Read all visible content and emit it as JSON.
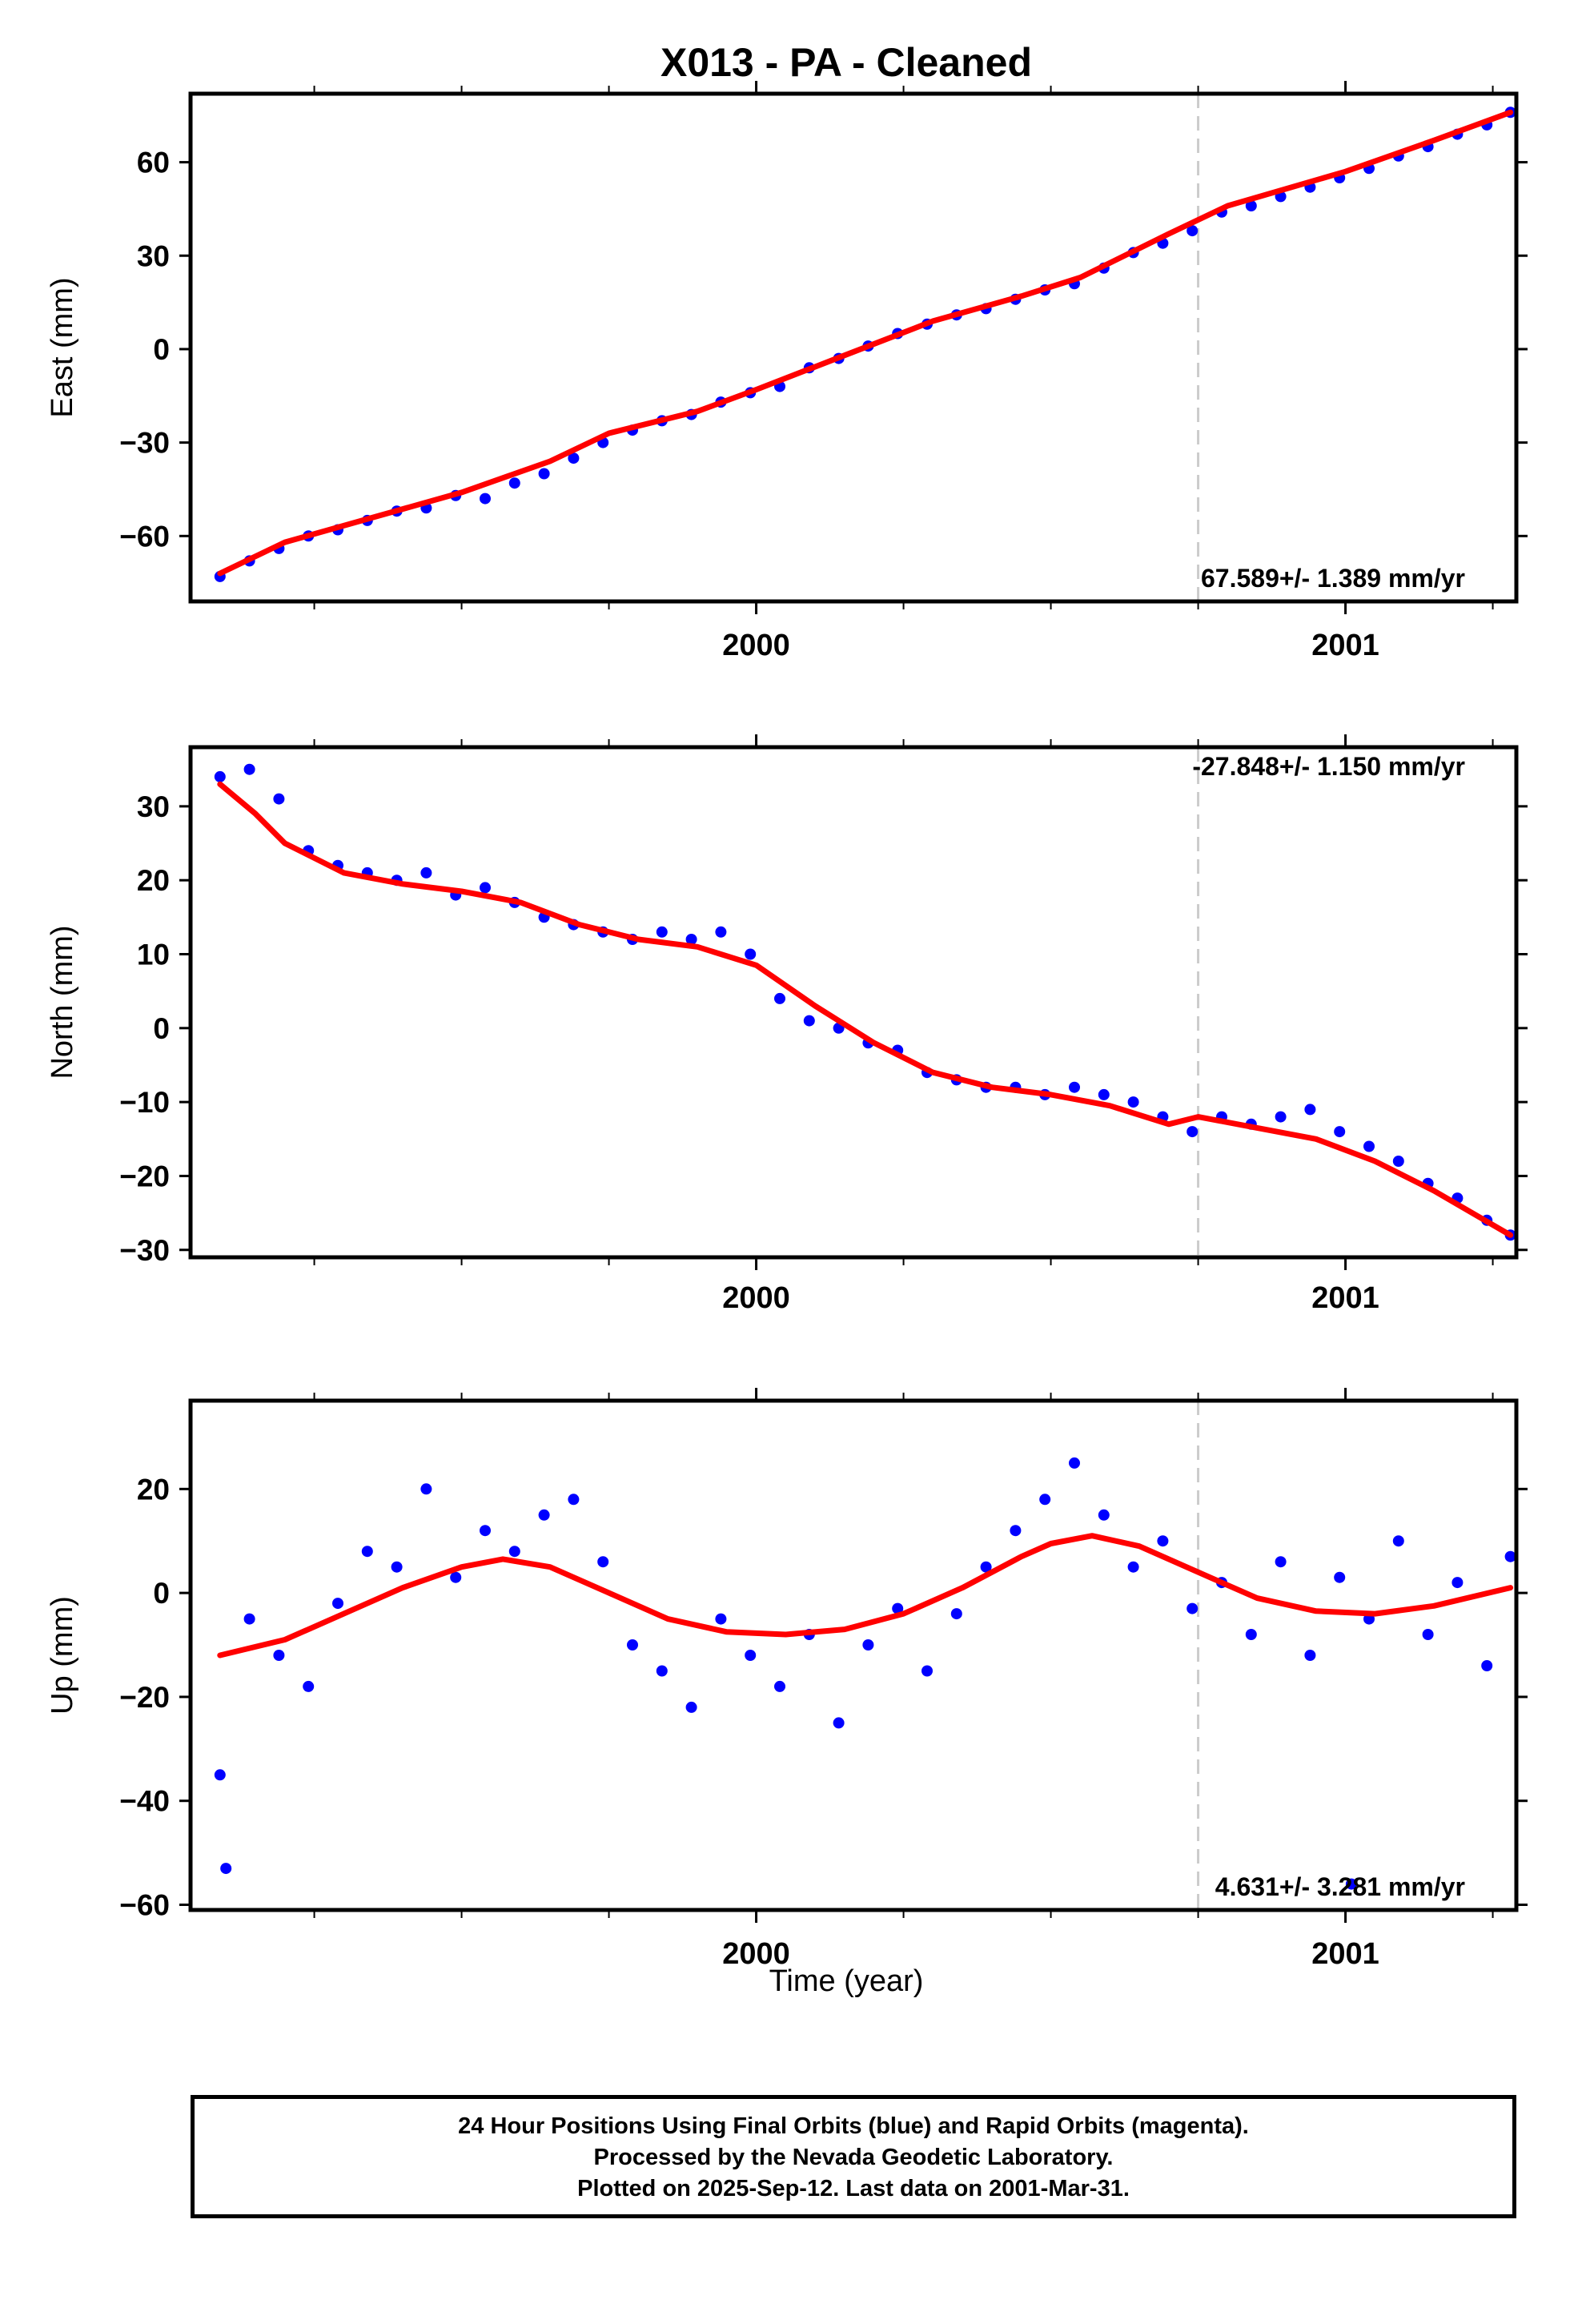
{
  "title": "X013  - PA - Cleaned",
  "xlabel": "Time (year)",
  "footer": {
    "line1": "24 Hour Positions Using Final Orbits (blue) and Rapid Orbits (magenta).",
    "line2": "Processed by the Nevada Geodetic Laboratory.",
    "line3": "Plotted on 2025-Sep-12. Last data on 2001-Mar-31."
  },
  "colors": {
    "points": "#0000ff",
    "model": "#ff0000",
    "marker": "#cccccc",
    "axis": "#000000"
  },
  "chart_data": [
    {
      "type": "scatter",
      "panel": "east",
      "ylabel": "East (mm)",
      "rate_label": "67.589+/- 1.389 mm/yr",
      "xlim": [
        1999.04,
        2001.29
      ],
      "ylim": [
        -81,
        82
      ],
      "yticks": [
        -60,
        -30,
        0,
        30,
        60
      ],
      "xtick_labels": [
        "2000",
        "2001"
      ],
      "xticks_major": [
        2000,
        2001
      ],
      "xticks_minor": [
        1999.25,
        1999.5,
        1999.75,
        2000.25,
        2000.5,
        2000.75,
        2001.25
      ],
      "vertical_marker": 2000.75,
      "model": {
        "x": [
          1999.09,
          1999.2,
          1999.35,
          1999.5,
          1999.65,
          1999.75,
          1999.9,
          2000.0,
          2000.15,
          2000.3,
          2000.45,
          2000.55,
          2000.7,
          2000.8,
          2001.0,
          2001.15,
          2001.28
        ],
        "y": [
          -72,
          -62,
          -54,
          -46,
          -36,
          -27,
          -20,
          -13,
          -2,
          9,
          17,
          23,
          37,
          46,
          57,
          67,
          76
        ]
      },
      "points": {
        "x": [
          1999.09,
          1999.14,
          1999.19,
          1999.24,
          1999.29,
          1999.34,
          1999.39,
          1999.44,
          1999.49,
          1999.54,
          1999.59,
          1999.64,
          1999.69,
          1999.74,
          1999.79,
          1999.84,
          1999.89,
          1999.94,
          1999.99,
          2000.04,
          2000.09,
          2000.14,
          2000.19,
          2000.24,
          2000.29,
          2000.34,
          2000.39,
          2000.44,
          2000.49,
          2000.54,
          2000.59,
          2000.64,
          2000.69,
          2000.74,
          2000.79,
          2000.84,
          2000.89,
          2000.94,
          2000.99,
          2001.04,
          2001.09,
          2001.14,
          2001.19,
          2001.24,
          2001.28
        ],
        "y": [
          -73,
          -68,
          -64,
          -60,
          -58,
          -55,
          -52,
          -51,
          -47,
          -48,
          -43,
          -40,
          -35,
          -30,
          -26,
          -23,
          -21,
          -17,
          -14,
          -12,
          -6,
          -3,
          1,
          5,
          8,
          11,
          13,
          16,
          19,
          21,
          26,
          31,
          34,
          38,
          44,
          46,
          49,
          52,
          55,
          58,
          62,
          65,
          69,
          72,
          76
        ]
      }
    },
    {
      "type": "scatter",
      "panel": "north",
      "ylabel": "North (mm)",
      "rate_label": "-27.848+/- 1.150 mm/yr",
      "xlim": [
        1999.04,
        2001.29
      ],
      "ylim": [
        -31,
        38
      ],
      "yticks": [
        -30,
        -20,
        -10,
        0,
        10,
        20,
        30
      ],
      "xtick_labels": [
        "2000",
        "2001"
      ],
      "xticks_major": [
        2000,
        2001
      ],
      "xticks_minor": [
        1999.25,
        1999.5,
        1999.75,
        2000.25,
        2000.5,
        2000.75,
        2001.25
      ],
      "vertical_marker": 2000.75,
      "model": {
        "x": [
          1999.09,
          1999.15,
          1999.2,
          1999.3,
          1999.4,
          1999.5,
          1999.6,
          1999.7,
          1999.8,
          1999.9,
          2000.0,
          2000.1,
          2000.2,
          2000.3,
          2000.4,
          2000.5,
          2000.6,
          2000.7,
          2000.75,
          2000.85,
          2000.95,
          2001.05,
          2001.15,
          2001.28
        ],
        "y": [
          33,
          29,
          25,
          21,
          19.5,
          18.5,
          17,
          14,
          12,
          11,
          8.5,
          3,
          -2,
          -6,
          -8,
          -9,
          -10.5,
          -13,
          -12,
          -13.5,
          -15,
          -18,
          -22,
          -28
        ]
      },
      "points": {
        "x": [
          1999.09,
          1999.14,
          1999.19,
          1999.24,
          1999.29,
          1999.34,
          1999.39,
          1999.44,
          1999.49,
          1999.54,
          1999.59,
          1999.64,
          1999.69,
          1999.74,
          1999.79,
          1999.84,
          1999.89,
          1999.94,
          1999.99,
          2000.04,
          2000.09,
          2000.14,
          2000.19,
          2000.24,
          2000.29,
          2000.34,
          2000.39,
          2000.44,
          2000.49,
          2000.54,
          2000.59,
          2000.64,
          2000.69,
          2000.74,
          2000.79,
          2000.84,
          2000.89,
          2000.94,
          2000.99,
          2001.04,
          2001.09,
          2001.14,
          2001.19,
          2001.24,
          2001.28
        ],
        "y": [
          34,
          35,
          31,
          24,
          22,
          21,
          20,
          21,
          18,
          19,
          17,
          15,
          14,
          13,
          12,
          13,
          12,
          13,
          10,
          4,
          1,
          0,
          -2,
          -3,
          -6,
          -7,
          -8,
          -8,
          -9,
          -8,
          -9,
          -10,
          -12,
          -14,
          -12,
          -13,
          -12,
          -11,
          -14,
          -16,
          -18,
          -21,
          -23,
          -26,
          -28
        ]
      }
    },
    {
      "type": "scatter",
      "panel": "up",
      "ylabel": "Up (mm)",
      "rate_label": "4.631+/- 3.281 mm/yr",
      "xlim": [
        1999.04,
        2001.29
      ],
      "ylim": [
        -61,
        37
      ],
      "yticks": [
        -60,
        -40,
        -20,
        0,
        20
      ],
      "xtick_labels": [
        "2000",
        "2001"
      ],
      "xticks_major": [
        2000,
        2001
      ],
      "xticks_minor": [
        1999.25,
        1999.5,
        1999.75,
        2000.25,
        2000.5,
        2000.75,
        2001.25
      ],
      "vertical_marker": 2000.75,
      "model": {
        "x": [
          1999.09,
          1999.2,
          1999.3,
          1999.4,
          1999.5,
          1999.57,
          1999.65,
          1999.75,
          1999.85,
          1999.95,
          2000.05,
          2000.15,
          2000.25,
          2000.35,
          2000.45,
          2000.5,
          2000.57,
          2000.65,
          2000.75,
          2000.85,
          2000.95,
          2001.05,
          2001.15,
          2001.28
        ],
        "y": [
          -12,
          -9,
          -4,
          1,
          5,
          6.5,
          5,
          0,
          -5,
          -7.5,
          -8,
          -7,
          -4,
          1,
          7,
          9.5,
          11,
          9,
          4,
          -1,
          -3.5,
          -4,
          -2.5,
          1
        ]
      },
      "points": {
        "x": [
          1999.09,
          1999.1,
          1999.14,
          1999.19,
          1999.24,
          1999.29,
          1999.34,
          1999.39,
          1999.44,
          1999.49,
          1999.54,
          1999.59,
          1999.64,
          1999.69,
          1999.74,
          1999.79,
          1999.84,
          1999.89,
          1999.94,
          1999.99,
          2000.04,
          2000.09,
          2000.14,
          2000.19,
          2000.24,
          2000.29,
          2000.34,
          2000.39,
          2000.44,
          2000.49,
          2000.54,
          2000.59,
          2000.64,
          2000.69,
          2000.74,
          2000.79,
          2000.84,
          2000.89,
          2000.94,
          2000.99,
          2001.01,
          2001.04,
          2001.09,
          2001.14,
          2001.19,
          2001.24,
          2001.28
        ],
        "y": [
          -35,
          -53,
          -5,
          -12,
          -18,
          -2,
          8,
          5,
          20,
          3,
          12,
          8,
          15,
          18,
          6,
          -10,
          -15,
          -22,
          -5,
          -12,
          -18,
          -8,
          -25,
          -10,
          -3,
          -15,
          -4,
          5,
          12,
          18,
          25,
          15,
          5,
          10,
          -3,
          2,
          -8,
          6,
          -12,
          3,
          -56,
          -5,
          10,
          -8,
          2,
          -14,
          7
        ]
      }
    }
  ]
}
